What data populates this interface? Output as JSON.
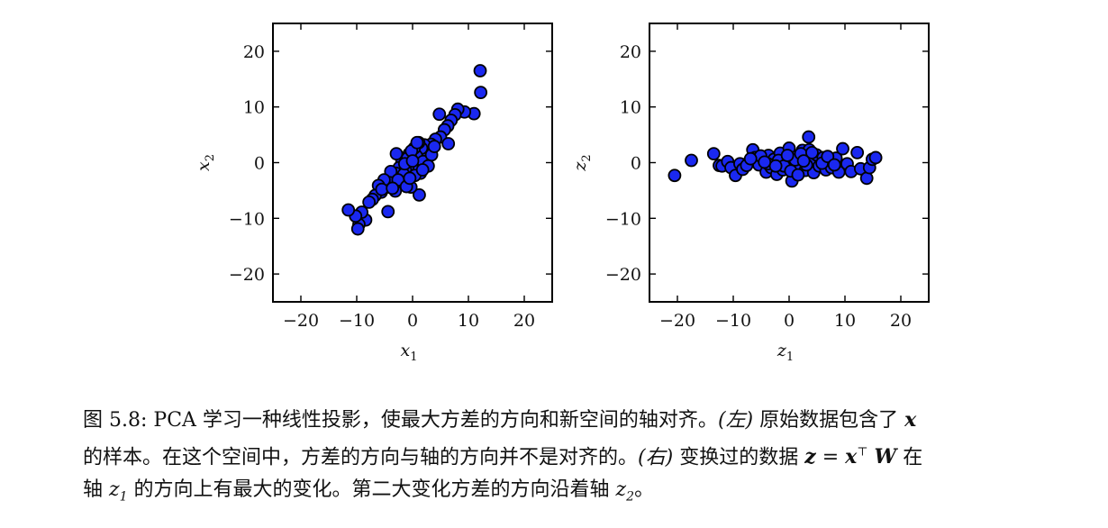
{
  "chart_data": [
    {
      "type": "scatter",
      "xlabel": "x",
      "xlabel_sub": "1",
      "ylabel": "x",
      "ylabel_sub": "2",
      "xlim": [
        -25,
        25
      ],
      "ylim": [
        -25,
        25
      ],
      "xticks": [
        -20,
        -10,
        0,
        10,
        20
      ],
      "yticks": [
        -20,
        -10,
        0,
        10,
        20
      ],
      "marker_color": "#1a28f0",
      "points": [
        [
          12.1,
          16.5
        ],
        [
          12.2,
          12.6
        ],
        [
          11,
          8.8
        ],
        [
          9.3,
          9.1
        ],
        [
          8.1,
          9.6
        ],
        [
          7.6,
          8.6
        ],
        [
          6.9,
          7.6
        ],
        [
          6.3,
          6.6
        ],
        [
          5.7,
          5.9
        ],
        [
          5,
          4.6
        ],
        [
          4.8,
          8.7
        ],
        [
          6.4,
          3.4
        ],
        [
          4.1,
          4.2
        ],
        [
          3.3,
          3.3
        ],
        [
          2.9,
          2.4
        ],
        [
          2.6,
          1.6
        ],
        [
          2.1,
          3.2
        ],
        [
          1.6,
          2.6
        ],
        [
          1.1,
          3.6
        ],
        [
          0.7,
          1.2
        ],
        [
          0.3,
          2.6
        ],
        [
          -0.2,
          0.6
        ],
        [
          -0.6,
          1.6
        ],
        [
          0.8,
          -0.4
        ],
        [
          1.4,
          -1.9
        ],
        [
          0.1,
          -1.1
        ],
        [
          -0.8,
          -0.6
        ],
        [
          -1.3,
          -1.3
        ],
        [
          -1.9,
          0.2
        ],
        [
          -2.4,
          -0.9
        ],
        [
          -2.9,
          1.6
        ],
        [
          -3,
          -1.9
        ],
        [
          -3.4,
          -2.9
        ],
        [
          -3.9,
          -1.6
        ],
        [
          -4.1,
          -3.6
        ],
        [
          -4.6,
          -4.4
        ],
        [
          -5.1,
          -3.1
        ],
        [
          -5.6,
          -5.3
        ],
        [
          -6.1,
          -4.1
        ],
        [
          -6.7,
          -5.9
        ],
        [
          -7.2,
          -6.6
        ],
        [
          -7.8,
          -7.1
        ],
        [
          -8.4,
          -10.3
        ],
        [
          -9.1,
          -8.9
        ],
        [
          -9.6,
          -11.1
        ],
        [
          -9.8,
          -11.9
        ],
        [
          -10.2,
          -9.6
        ],
        [
          -11.5,
          -8.5
        ],
        [
          -4.4,
          -8.8
        ],
        [
          1.2,
          -5.8
        ],
        [
          -0.3,
          -4.4
        ],
        [
          -2.1,
          -3.6
        ],
        [
          -1.6,
          -2.1
        ],
        [
          -0.9,
          0.8
        ],
        [
          0.4,
          -2.3
        ],
        [
          1.9,
          0.2
        ],
        [
          3.4,
          1.4
        ],
        [
          3.9,
          2.9
        ],
        [
          2.8,
          -0.6
        ],
        [
          -3.1,
          -5.1
        ],
        [
          -5.5,
          -4.8
        ],
        [
          -0.2,
          2.1
        ],
        [
          0.8,
          3.6
        ],
        [
          1.8,
          -1.3
        ],
        [
          -1.4,
          -0.2
        ],
        [
          -2.6,
          -3.1
        ],
        [
          -1.1,
          -4.3
        ],
        [
          0,
          0.3
        ],
        [
          -0.5,
          -2.8
        ],
        [
          -3.6,
          -4.6
        ]
      ]
    },
    {
      "type": "scatter",
      "xlabel": "z",
      "xlabel_sub": "1",
      "ylabel": "z",
      "ylabel_sub": "2",
      "xlim": [
        -25,
        25
      ],
      "ylim": [
        -25,
        25
      ],
      "xticks": [
        -20,
        -10,
        0,
        10,
        20
      ],
      "yticks": [
        -20,
        -10,
        0,
        10,
        20
      ],
      "marker_color": "#1a28f0",
      "points": [
        [
          -20.5,
          -2.3
        ],
        [
          -17.5,
          0.4
        ],
        [
          -13.5,
          1.6
        ],
        [
          -12.5,
          -0.5
        ],
        [
          -12,
          -0.6
        ],
        [
          -11,
          0.2
        ],
        [
          -10.4,
          -0.9
        ],
        [
          -9.6,
          -2.3
        ],
        [
          -8.8,
          -0.2
        ],
        [
          -8.3,
          -1.2
        ],
        [
          -7.2,
          0.1
        ],
        [
          -6.5,
          2.3
        ],
        [
          -6.1,
          0.9
        ],
        [
          -5.4,
          -0.4
        ],
        [
          -4.6,
          0.7
        ],
        [
          -4.1,
          -1.7
        ],
        [
          -3.7,
          1.3
        ],
        [
          -3.2,
          -0.9
        ],
        [
          -2.7,
          0.6
        ],
        [
          -2.2,
          -2.1
        ],
        [
          -1.6,
          1.7
        ],
        [
          -1.1,
          -1.3
        ],
        [
          -0.6,
          0.3
        ],
        [
          0,
          2.6
        ],
        [
          0.5,
          -3.3
        ],
        [
          0.9,
          -0.8
        ],
        [
          1.4,
          1.1
        ],
        [
          1.9,
          -0.3
        ],
        [
          2.4,
          2.2
        ],
        [
          2.9,
          -1.4
        ],
        [
          3.5,
          4.6
        ],
        [
          3.6,
          2.3
        ],
        [
          3.9,
          0.4
        ],
        [
          4.4,
          -1.8
        ],
        [
          4.9,
          1.4
        ],
        [
          5.4,
          -0.6
        ],
        [
          6.1,
          0.9
        ],
        [
          6.6,
          -1.3
        ],
        [
          7.2,
          0.2
        ],
        [
          7.6,
          -0.9
        ],
        [
          8.4,
          0.8
        ],
        [
          8.9,
          -1.7
        ],
        [
          9.6,
          2.5
        ],
        [
          10.4,
          -0.2
        ],
        [
          11.1,
          -1.6
        ],
        [
          12.2,
          1.8
        ],
        [
          12.8,
          -1.1
        ],
        [
          13.9,
          -2.8
        ],
        [
          14.4,
          -0.9
        ],
        [
          14.9,
          0.6
        ],
        [
          15.5,
          0.9
        ],
        [
          -1.9,
          0.4
        ],
        [
          -3.8,
          -0.2
        ],
        [
          1.1,
          0.5
        ],
        [
          2.1,
          1.6
        ],
        [
          -0.9,
          -0.6
        ],
        [
          4.1,
          1.8
        ],
        [
          5.9,
          -0.1
        ],
        [
          -5.1,
          1.2
        ],
        [
          0.3,
          -1.5
        ],
        [
          -2.4,
          -0.6
        ],
        [
          3.1,
          -0.4
        ],
        [
          -7.6,
          -0.5
        ],
        [
          6.9,
          1.1
        ],
        [
          -0.3,
          1.3
        ],
        [
          1.6,
          -2.2
        ],
        [
          -4.4,
          0.1
        ],
        [
          2.6,
          0.3
        ],
        [
          8.1,
          -0.4
        ],
        [
          -6.9,
          0.7
        ]
      ]
    }
  ],
  "caption": {
    "fig_label": "图 5.8:",
    "t1": "PCA 学习一种线性投影，使最大方差的方向和新空间的轴对齐。",
    "left_tag": "(左)",
    "t2": "原始数据包含了",
    "var_x": "x",
    "t3": "的样本。在这个空间中，方差的方向与轴的方向并不是对齐的。",
    "right_tag": "(右)",
    "t4": "变换过的数据",
    "eq_z": "z",
    "eq_eq": " = ",
    "eq_x": "x",
    "eq_T": "⊤",
    "eq_W": "W",
    "t5": "在",
    "t6": "轴",
    "z1_var": "z",
    "z1_sub": "1",
    "t7": "的方向上有最大的变化。第二大变化方差的方向沿着轴",
    "z2_var": "z",
    "z2_sub": "2",
    "t8": "。"
  }
}
